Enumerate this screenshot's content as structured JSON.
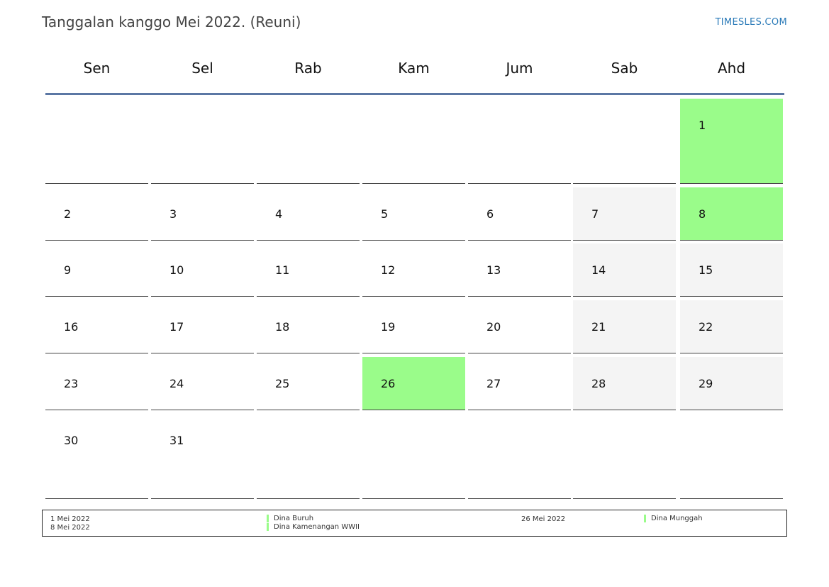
{
  "header": {
    "title": "Tanggalan kanggo Mei 2022. (Reuni)",
    "site": "TIMESLES.COM"
  },
  "weekdays": [
    "Sen",
    "Sel",
    "Rab",
    "Kam",
    "Jum",
    "Sab",
    "Ahd"
  ],
  "weeks": [
    [
      null,
      null,
      null,
      null,
      null,
      null,
      1
    ],
    [
      2,
      3,
      4,
      5,
      6,
      7,
      8
    ],
    [
      9,
      10,
      11,
      12,
      13,
      14,
      15
    ],
    [
      16,
      17,
      18,
      19,
      20,
      21,
      22
    ],
    [
      23,
      24,
      25,
      26,
      27,
      28,
      29
    ],
    [
      30,
      31,
      null,
      null,
      null,
      null,
      null
    ]
  ],
  "holidays": [
    1,
    8,
    26
  ],
  "colors": {
    "holiday": "#9afc8a",
    "weekend": "#f4f4f4",
    "header_line": "#5b77a4"
  },
  "legend": {
    "col1": [
      {
        "date": "1 Mei 2022",
        "name": "Dina Buruh"
      },
      {
        "date": "8 Mei 2022",
        "name": "Dina Kamenangan WWII"
      }
    ],
    "col2": [
      {
        "date": "26 Mei 2022",
        "name": "Dina Munggah"
      }
    ]
  }
}
